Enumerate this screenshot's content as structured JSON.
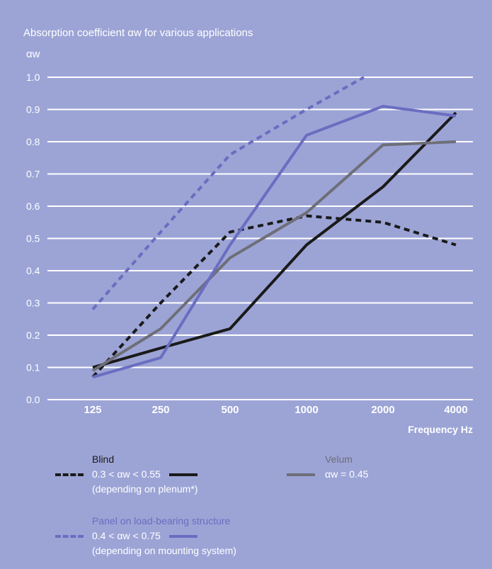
{
  "chart_data": {
    "type": "line",
    "title": "Absorption coefficient αw for various applications",
    "ylabel": "αw",
    "xlabel": "Frequency Hz",
    "categories": [
      "125",
      "250",
      "500",
      "1000",
      "2000",
      "4000"
    ],
    "ylim": [
      0.0,
      1.0
    ],
    "yticks": [
      "0.0",
      "0.1",
      "0.2",
      "0.3",
      "0.4",
      "0.5",
      "0.6",
      "0.7",
      "0.8",
      "0.9",
      "1.0"
    ],
    "grid": true,
    "series": [
      {
        "key": "blind_dashed",
        "color": "#1a1a1a",
        "style": "dashed",
        "x": [
          0,
          1,
          2,
          3,
          4,
          5
        ],
        "values": [
          0.07,
          0.3,
          0.52,
          0.57,
          0.55,
          0.48
        ]
      },
      {
        "key": "blind_solid",
        "color": "#1a1a1a",
        "style": "solid",
        "x": [
          0,
          1,
          2,
          3,
          4,
          5
        ],
        "values": [
          0.1,
          0.16,
          0.22,
          0.48,
          0.66,
          0.89
        ]
      },
      {
        "key": "velum",
        "color": "#6e6e78",
        "style": "solid",
        "x": [
          0,
          1,
          2,
          3,
          4,
          5
        ],
        "values": [
          0.09,
          0.22,
          0.44,
          0.58,
          0.79,
          0.8
        ]
      },
      {
        "key": "panel_dashed",
        "color": "#6a6dc0",
        "style": "dashed",
        "x": [
          0,
          1,
          2,
          3,
          3.75
        ],
        "values": [
          0.28,
          0.52,
          0.76,
          0.9,
          1.0
        ]
      },
      {
        "key": "panel_solid",
        "color": "#6a6dc0",
        "style": "solid",
        "x": [
          0,
          1,
          2,
          3,
          4,
          5
        ],
        "values": [
          0.07,
          0.13,
          0.48,
          0.82,
          0.91,
          0.88
        ]
      }
    ]
  },
  "legend": {
    "blind": {
      "title": "Blind",
      "range": "0.3 < αw < 0.55",
      "note": "(depending on plenum*)",
      "color": "#1a1a1a"
    },
    "velum": {
      "title": "Velum",
      "range": "αw = 0.45",
      "color": "#6e6e78"
    },
    "panel": {
      "title": "Panel on load-bearing structure",
      "range": "0.4 < αw < 0.75",
      "note": "(depending on mounting system)",
      "color": "#6a6dc0"
    }
  }
}
